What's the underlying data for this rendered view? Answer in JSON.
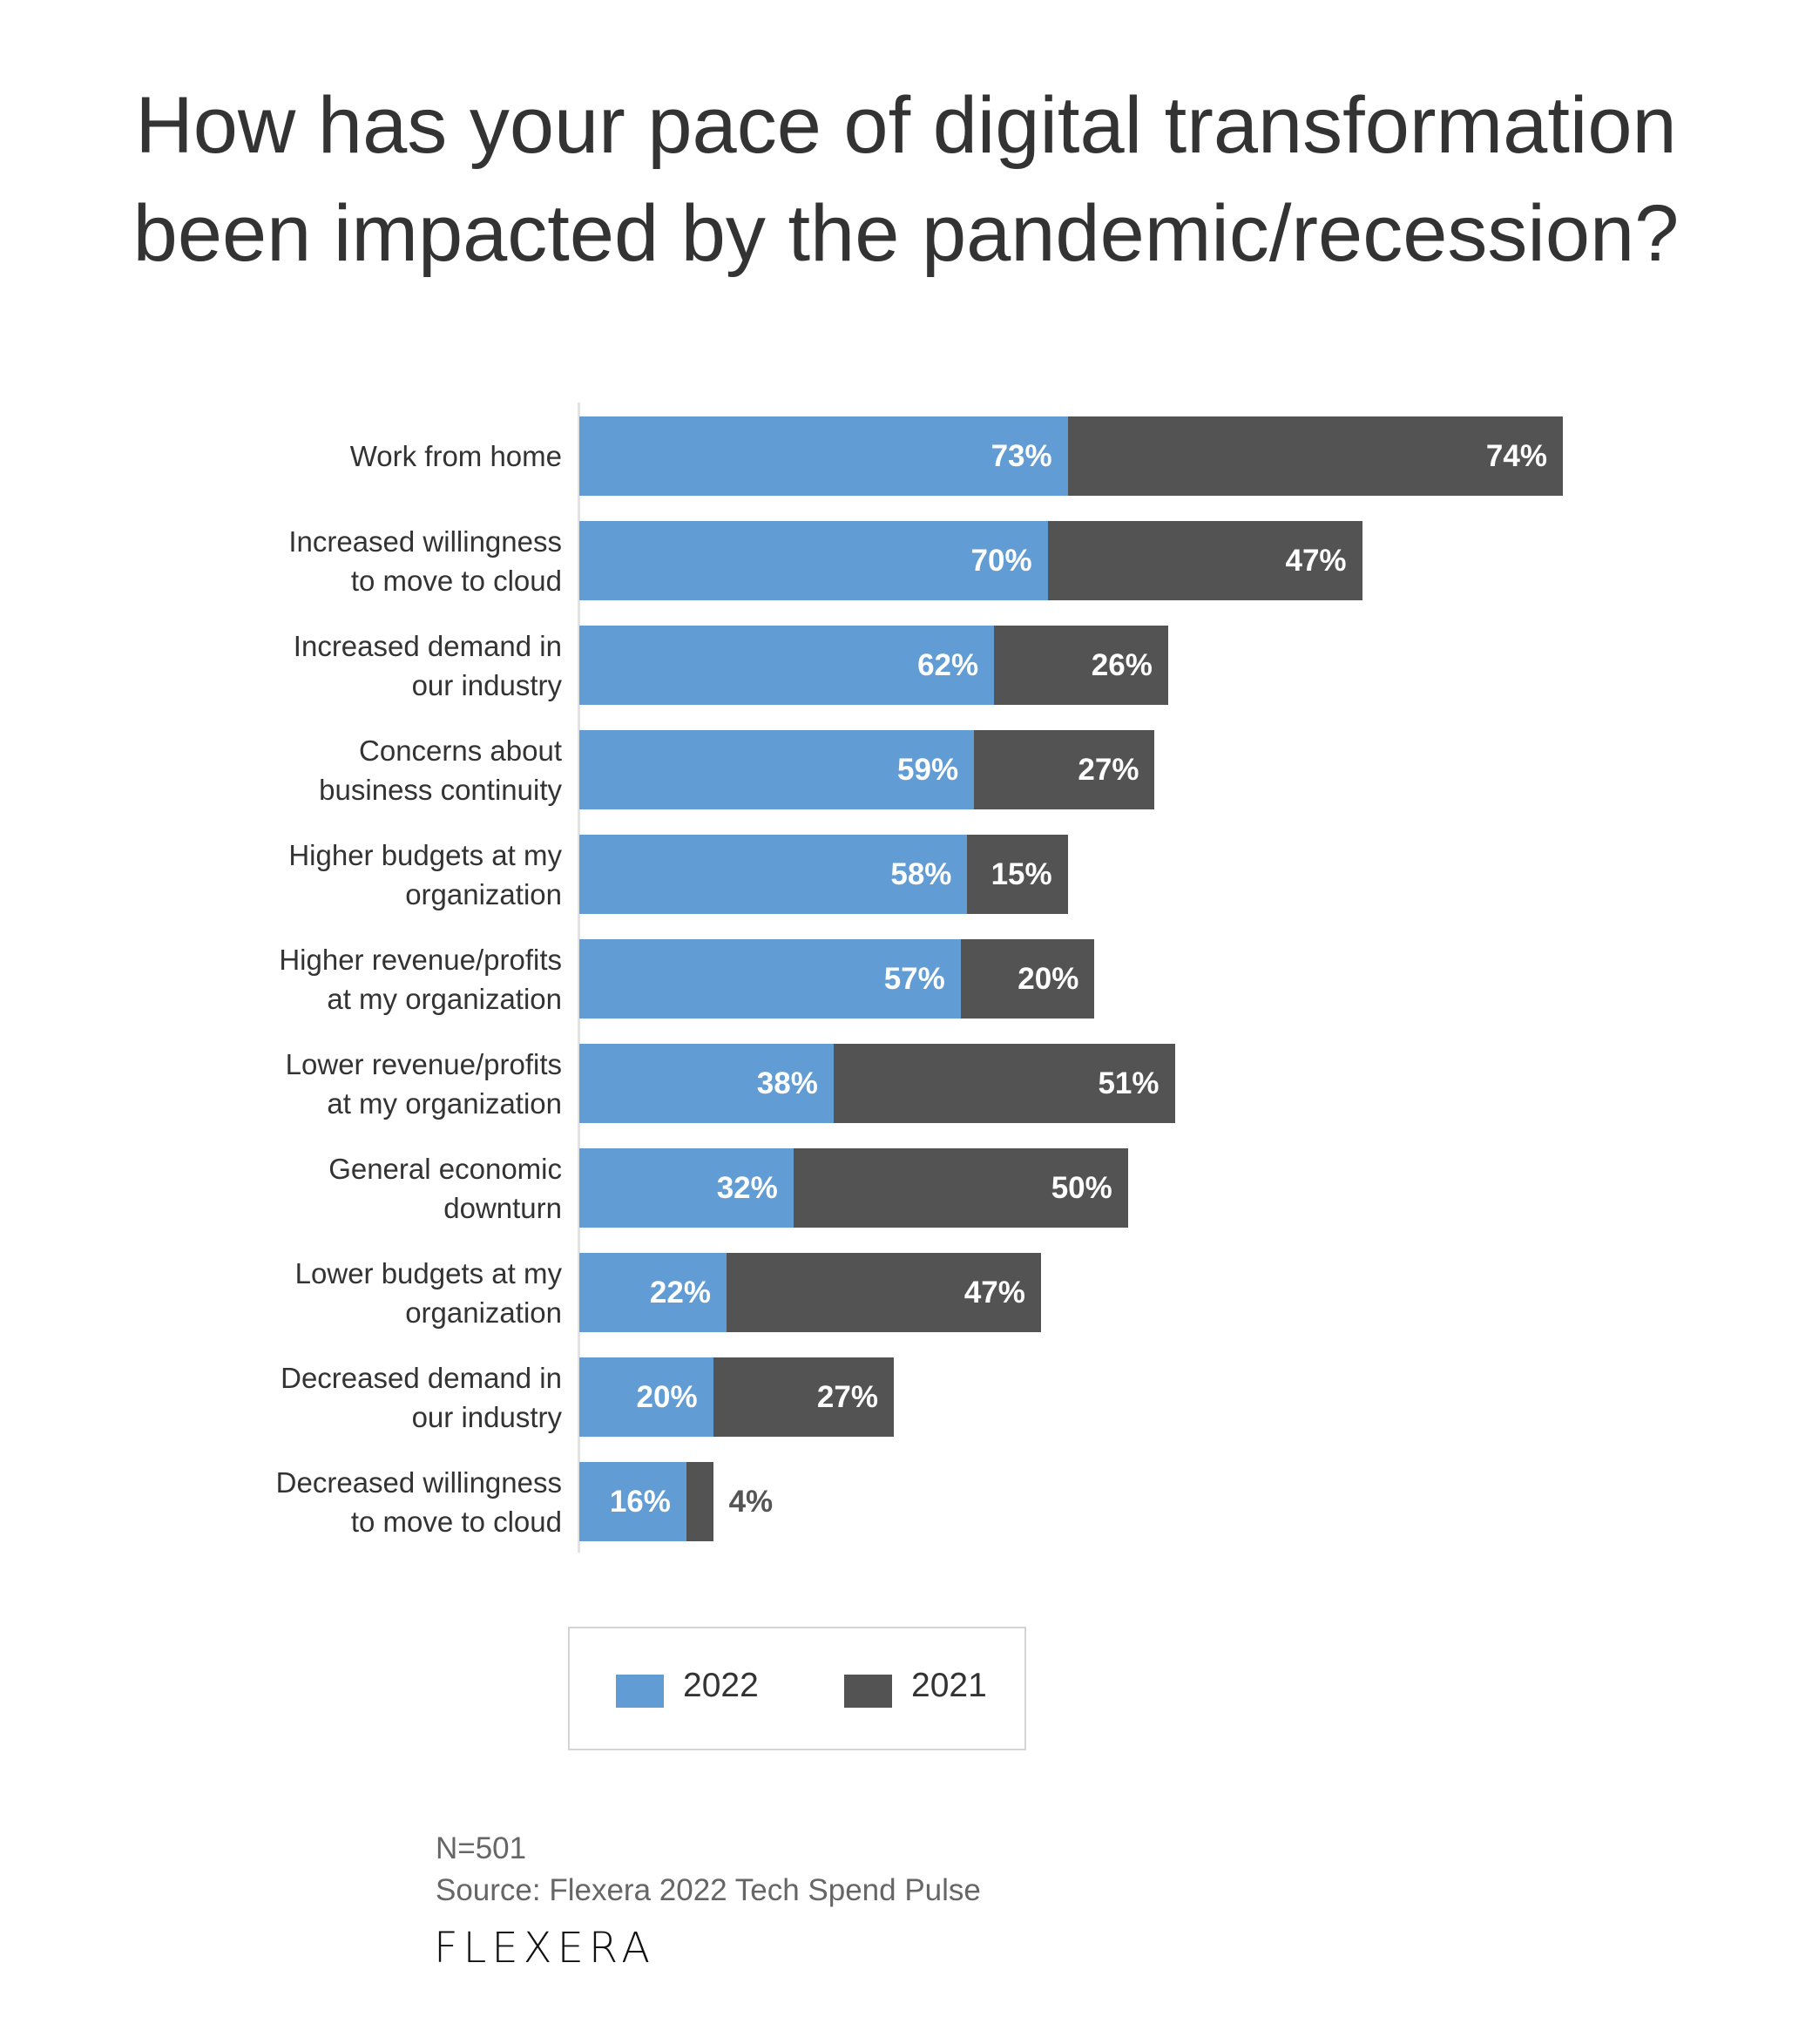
{
  "chart_data": {
    "type": "bar",
    "orientation": "horizontal",
    "stacked": true,
    "title": "How has your pace of digital transformation been impacted by the pandemic/recession?",
    "title_lines": [
      "How has your pace of digital transformation",
      "been impacted by the pandemic/recession?"
    ],
    "categories": [
      [
        "Work from home"
      ],
      [
        "Increased willingness",
        "to move to cloud"
      ],
      [
        "Increased demand in",
        "our industry"
      ],
      [
        "Concerns about",
        "business continuity"
      ],
      [
        "Higher budgets at my",
        "organization"
      ],
      [
        "Higher revenue/profits",
        "at my organization"
      ],
      [
        "Lower revenue/profits",
        "at my organization"
      ],
      [
        "General economic",
        "downturn"
      ],
      [
        "Lower budgets at my",
        "organization"
      ],
      [
        "Decreased demand in",
        "our industry"
      ],
      [
        "Decreased willingness",
        "to move to cloud"
      ]
    ],
    "series": [
      {
        "name": "2022",
        "color": "#619cd4",
        "values": [
          73,
          70,
          62,
          59,
          58,
          57,
          38,
          32,
          22,
          20,
          16
        ]
      },
      {
        "name": "2021",
        "color": "#535353",
        "values": [
          74,
          47,
          26,
          27,
          15,
          20,
          51,
          50,
          47,
          27,
          4
        ]
      }
    ],
    "value_suffix": "%",
    "legend": {
      "position": "bottom",
      "items": [
        "2022",
        "2021"
      ]
    },
    "grid": false
  },
  "footer": {
    "n": "N=501",
    "source": "Source: Flexera 2022 Tech Spend Pulse",
    "logo": "flexera"
  }
}
